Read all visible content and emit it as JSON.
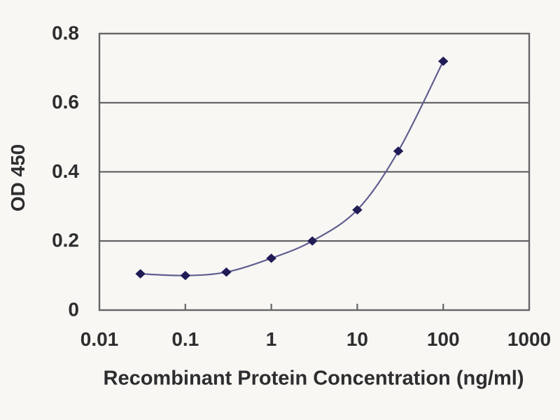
{
  "figure": {
    "background": "#f8f7f4"
  },
  "chart_data": {
    "type": "line",
    "title": "",
    "xlabel": "Recombinant Protein Concentration (ng/ml)",
    "ylabel": "OD 450",
    "x_scale": "log",
    "xlim": [
      0.01,
      1000
    ],
    "ylim": [
      0,
      0.8
    ],
    "x_ticks": [
      "0.01",
      "0.1",
      "1",
      "10",
      "100",
      "1000"
    ],
    "y_ticks": [
      "0",
      "0.2",
      "0.4",
      "0.6",
      "0.8"
    ],
    "grid": "horizontal-only",
    "legend": "none",
    "marker_shape": "diamond",
    "series": [
      {
        "name": "OD 450",
        "x": [
          0.03,
          0.1,
          0.3,
          1,
          3,
          10,
          30,
          100
        ],
        "y": [
          0.105,
          0.1,
          0.11,
          0.15,
          0.2,
          0.29,
          0.46,
          0.72
        ]
      }
    ],
    "colors": {
      "line": "#615f90",
      "marker": "#211c56",
      "grid": "#545456",
      "axis": "#656567",
      "text": "#2e2d2f"
    }
  }
}
